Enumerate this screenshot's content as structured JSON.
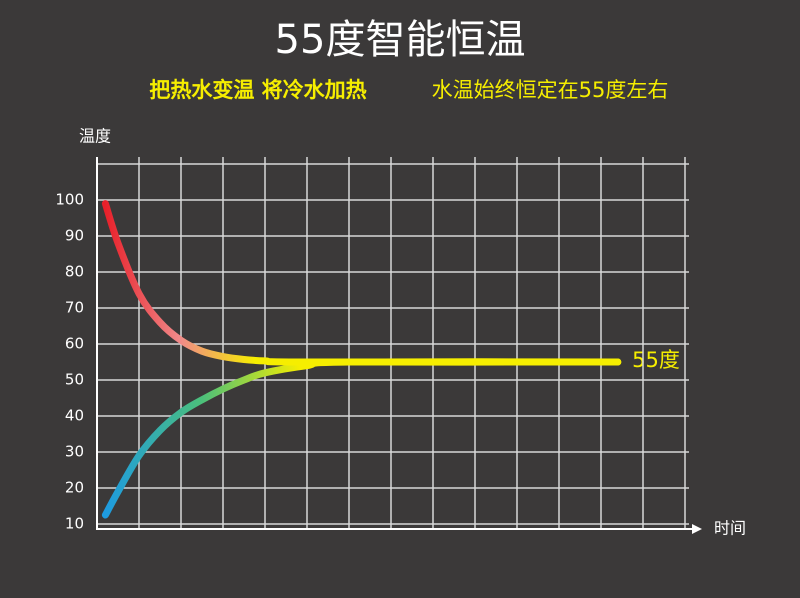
{
  "chart_data": {
    "type": "line",
    "title": "55度智能恒温",
    "subtitle_bold": "把热水变温  将冷水加热",
    "subtitle": "水温始终恒定在55度左右",
    "y_label": "温度",
    "x_label": "时间",
    "annotation": "55度",
    "ylim": [
      10,
      110
    ],
    "yticks": [
      10,
      20,
      30,
      40,
      50,
      60,
      70,
      80,
      90,
      100
    ],
    "xlim": [
      0,
      14
    ],
    "grid": true,
    "end_color": "#f6ee00",
    "series": [
      {
        "color": "#e8202a",
        "mid_color": "#f08a8a",
        "x": [
          0.2,
          0.5,
          1,
          1.5,
          2,
          2.5,
          3,
          3.5,
          4,
          5,
          12.4
        ],
        "values": [
          99,
          88,
          74,
          66,
          61,
          58,
          56.5,
          55.7,
          55.3,
          55,
          55
        ]
      },
      {
        "color": "#1e9be0",
        "mid_color": "#4cc07a",
        "x": [
          0.2,
          0.5,
          1,
          1.5,
          2,
          2.5,
          3,
          3.5,
          4,
          5,
          6,
          12.4
        ],
        "values": [
          12.5,
          19,
          29,
          36,
          41,
          44.5,
          47.5,
          50,
          52,
          54,
          55,
          55
        ]
      }
    ]
  }
}
